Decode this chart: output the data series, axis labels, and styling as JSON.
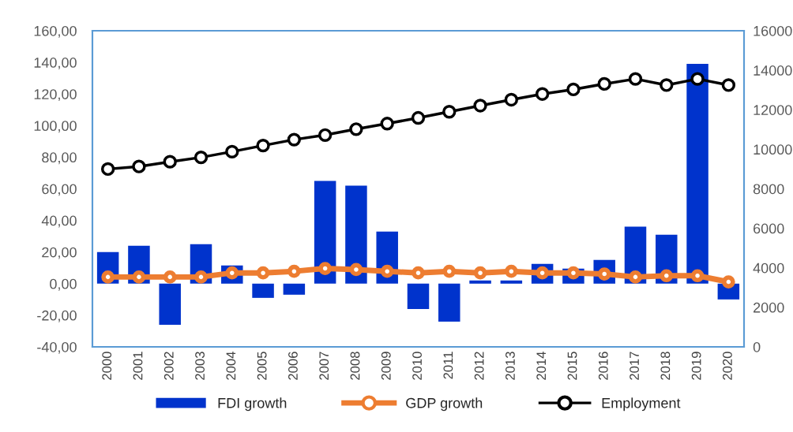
{
  "chart_data": {
    "type": "bar",
    "categories": [
      "2000",
      "2001",
      "2002",
      "2003",
      "2004",
      "2005",
      "2006",
      "2007",
      "2008",
      "2009",
      "2010",
      "2011",
      "2012",
      "2013",
      "2014",
      "2015",
      "2016",
      "2017",
      "2018",
      "2019",
      "2020"
    ],
    "series": [
      {
        "name": "FDI growth",
        "color": "#0033cc",
        "values": [
          20,
          24,
          -26,
          25,
          11.5,
          -9,
          -7,
          65,
          62,
          33,
          -16,
          -24,
          2,
          2,
          12.5,
          9.5,
          15,
          36,
          31,
          139,
          -10
        ]
      },
      {
        "name": "GDP growth",
        "type": "line",
        "color": "#ed7d31",
        "marker": "circle",
        "values": [
          4.2,
          4.2,
          4.2,
          4.2,
          6.8,
          6.8,
          7.8,
          9.6,
          8.9,
          7.8,
          6.8,
          7.8,
          6.8,
          7.8,
          6.8,
          6.8,
          6.1,
          4.2,
          5.0,
          5.0,
          1.1
        ]
      },
      {
        "name": "Employment",
        "type": "line",
        "axis": "y2",
        "color": "#000000",
        "marker": "circle",
        "values": [
          9000,
          9130,
          9370,
          9590,
          9880,
          10190,
          10490,
          10720,
          11020,
          11300,
          11590,
          11900,
          12210,
          12510,
          12800,
          13030,
          13310,
          13560,
          13250,
          13560,
          13250
        ]
      }
    ],
    "ylim": [
      -40,
      160
    ],
    "yticks": [
      {
        "value": -40,
        "label": "-40,00"
      },
      {
        "value": -20,
        "label": "-20,00"
      },
      {
        "value": 0,
        "label": "0,00"
      },
      {
        "value": 20,
        "label": "20,00"
      },
      {
        "value": 40,
        "label": "40,00"
      },
      {
        "value": 60,
        "label": "60,00"
      },
      {
        "value": 80,
        "label": "80,00"
      },
      {
        "value": 100,
        "label": "100,00"
      },
      {
        "value": 120,
        "label": "120,00"
      },
      {
        "value": 140,
        "label": "140,00"
      },
      {
        "value": 160,
        "label": "160,00"
      }
    ],
    "y2lim": [
      0,
      16000
    ],
    "y2ticks": [
      0,
      2000,
      4000,
      6000,
      8000,
      10000,
      12000,
      14000,
      16000
    ],
    "grid": false,
    "legend": "bottom"
  }
}
